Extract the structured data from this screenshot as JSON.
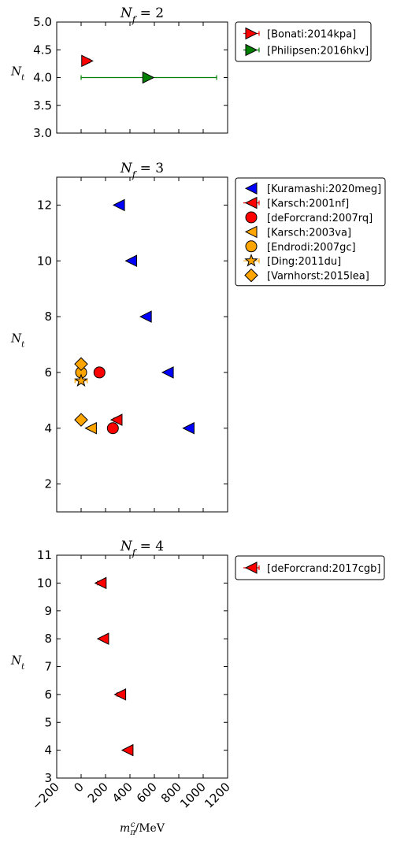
{
  "chart_data": [
    {
      "type": "scatter",
      "title": "N_f = 2",
      "ylabel": "N_t",
      "xlim": [
        -200,
        1200
      ],
      "ylim": [
        3.0,
        5.0
      ],
      "yticks": [
        "3.0",
        "3.5",
        "4.0",
        "4.5",
        "5.0"
      ],
      "legend_position": "outside-right-top",
      "series": [
        {
          "name": "[Bonati:2014kpa]",
          "marker": "triangle-right",
          "color": "#ff0000",
          "points": [
            {
              "x": 50,
              "y": 4.3,
              "xerr": 20
            }
          ]
        },
        {
          "name": "[Philipsen:2016hkv]",
          "marker": "triangle-right",
          "color": "#008000",
          "points": [
            {
              "x": 550,
              "y": 4.0,
              "xerr_low": 550,
              "xerr_high": 560
            }
          ]
        }
      ]
    },
    {
      "type": "scatter",
      "title": "N_f = 3",
      "ylabel": "N_t",
      "xlim": [
        -200,
        1200
      ],
      "ylim": [
        1,
        13
      ],
      "yticks": [
        "2",
        "4",
        "6",
        "8",
        "10",
        "12"
      ],
      "legend_position": "outside-right-top",
      "series": [
        {
          "name": "[Kuramashi:2020meg]",
          "marker": "triangle-left",
          "color": "#0000ff",
          "points": [
            {
              "x": 310,
              "y": 12
            },
            {
              "x": 410,
              "y": 10
            },
            {
              "x": 530,
              "y": 8
            },
            {
              "x": 710,
              "y": 6
            },
            {
              "x": 880,
              "y": 4
            }
          ]
        },
        {
          "name": "[Karsch:2001nf]",
          "marker": "triangle-left",
          "color": "#ff0000",
          "points": [
            {
              "x": 290,
              "y": 4.3,
              "xerr": 20
            }
          ]
        },
        {
          "name": "[deForcrand:2007rq]",
          "marker": "circle",
          "color": "#ff0000",
          "points": [
            {
              "x": 150,
              "y": 6
            },
            {
              "x": 260,
              "y": 4
            }
          ]
        },
        {
          "name": "[Karsch:2003va]",
          "marker": "triangle-left",
          "color": "#ffa500",
          "points": [
            {
              "x": 80,
              "y": 4
            }
          ]
        },
        {
          "name": "[Endrodi:2007gc]",
          "marker": "circle",
          "color": "#ffa500",
          "points": [
            {
              "x": 0,
              "y": 6
            }
          ]
        },
        {
          "name": "[Ding:2011du]",
          "marker": "star",
          "color": "#ffa500",
          "points": [
            {
              "x": 0,
              "y": 5.7,
              "xerr": 50
            }
          ]
        },
        {
          "name": "[Varnhorst:2015lea]",
          "marker": "diamond",
          "color": "#ffa500",
          "points": [
            {
              "x": 0,
              "y": 6.3
            },
            {
              "x": 0,
              "y": 4.3
            }
          ]
        }
      ]
    },
    {
      "type": "scatter",
      "title": "N_f = 4",
      "ylabel": "N_t",
      "xlabel": "m_π^c/MeV",
      "xlim": [
        -200,
        1200
      ],
      "ylim": [
        3,
        11
      ],
      "xticks": [
        "−200",
        "0",
        "200",
        "400",
        "600",
        "800",
        "1000",
        "1200"
      ],
      "yticks": [
        "3",
        "4",
        "5",
        "6",
        "7",
        "8",
        "9",
        "10",
        "11"
      ],
      "legend_position": "outside-right-top",
      "series": [
        {
          "name": "[deForcrand:2017cgb]",
          "marker": "triangle-left",
          "color": "#ff0000",
          "points": [
            {
              "x": 160,
              "y": 10,
              "xerr": 25
            },
            {
              "x": 180,
              "y": 8
            },
            {
              "x": 320,
              "y": 6,
              "xerr": 25
            },
            {
              "x": 380,
              "y": 4
            }
          ]
        }
      ]
    }
  ]
}
